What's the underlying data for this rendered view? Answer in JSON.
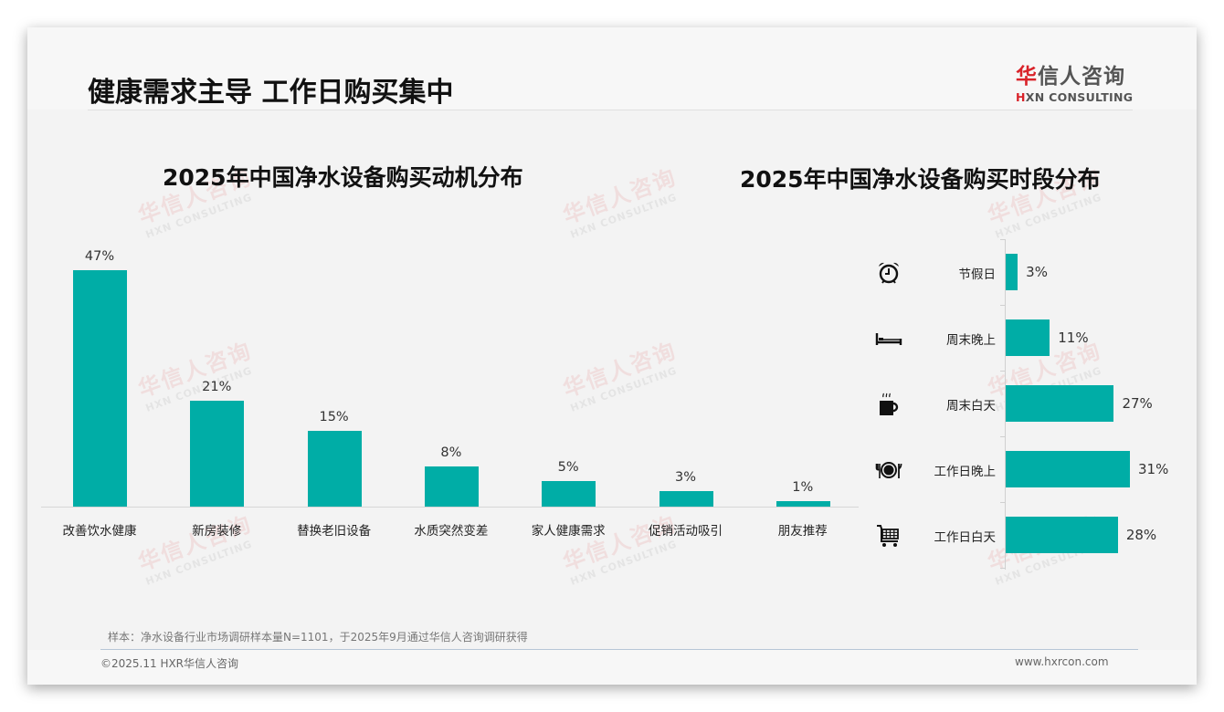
{
  "header": {
    "title": "健康需求主导 工作日购买集中",
    "logo": {
      "cn_accent": "华",
      "cn_rest": "信人咨询",
      "en_accent": "H",
      "en_rest": "XN CONSULTING"
    }
  },
  "watermark": {
    "cn": "华信人咨询",
    "en": "HXN CONSULTING"
  },
  "left_chart": {
    "title": "2025年中国净水设备购买动机分布"
  },
  "right_chart": {
    "title": "2025年中国净水设备购买时段分布"
  },
  "chart_data": [
    {
      "type": "bar",
      "title": "2025年中国净水设备购买动机分布",
      "categories": [
        "改善饮水健康",
        "新房装修",
        "替换老旧设备",
        "水质突然变差",
        "家人健康需求",
        "促销活动吸引",
        "朋友推荐"
      ],
      "values": [
        47,
        21,
        15,
        8,
        5,
        3,
        1
      ],
      "labels": [
        "47%",
        "21%",
        "15%",
        "8%",
        "5%",
        "3%",
        "1%"
      ],
      "unit": "%",
      "xlabel": "",
      "ylabel": "",
      "grid": false,
      "legend": "none",
      "color": "#00ada6"
    },
    {
      "type": "bar",
      "orientation": "horizontal",
      "title": "2025年中国净水设备购买时段分布",
      "categories": [
        "节假日",
        "周末晚上",
        "周末白天",
        "工作日晚上",
        "工作日白天"
      ],
      "values": [
        3,
        11,
        27,
        31,
        28
      ],
      "labels": [
        "3%",
        "11%",
        "27%",
        "31%",
        "28%"
      ],
      "icons": [
        "alarm-clock-icon",
        "bed-icon",
        "coffee-cup-icon",
        "plate-cutlery-icon",
        "shopping-cart-icon"
      ],
      "unit": "%",
      "grid": false,
      "legend": "none",
      "color": "#00ada6"
    }
  ],
  "footer": {
    "note": "样本：净水设备行业市场调研样本量N=1101，于2025年9月通过华信人咨询调研获得",
    "copyright": "©2025.11 HXR华信人咨询",
    "website": "www.hxrcon.com"
  },
  "colors": {
    "bar": "#00ada6",
    "brand_red": "#d9232a",
    "background": "#f3f3f3"
  }
}
